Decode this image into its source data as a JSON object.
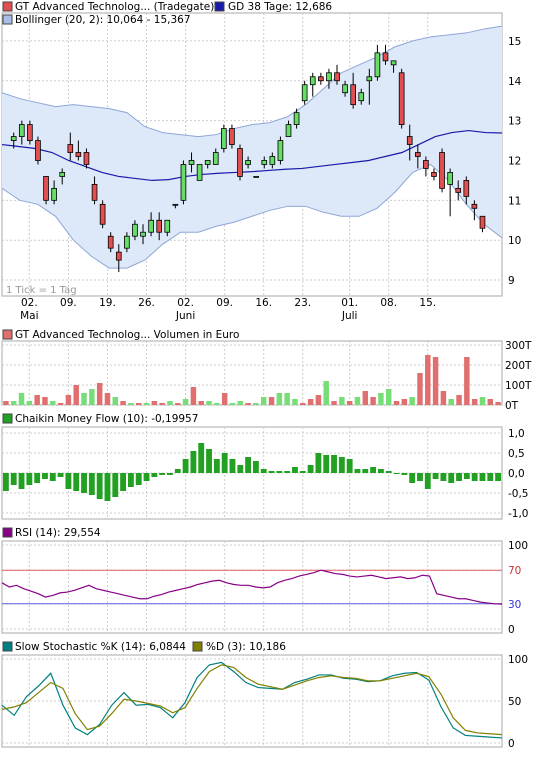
{
  "colors": {
    "candle_up": "#66dd66",
    "candle_down": "#e05050",
    "ma_line": "#1a1aaa",
    "bollinger_fill": "#dde8f8",
    "bollinger_line": "#8ea6d8",
    "volume_up": "#77dd77",
    "volume_down": "#e07070",
    "cmf_bar": "#22a022",
    "rsi_line": "#880088",
    "rsi_upper_line": "#e06060",
    "rsi_lower_line": "#6060e0",
    "stoch_k": "#008080",
    "stoch_d": "#808000",
    "grid": "#cccccc"
  },
  "legend": {
    "price_label": "GT Advanced Technolog... (Tradegate)",
    "ma_label": "GD 38 Tage: 12,686",
    "bollinger_label": "Bollinger (20, 2): 10,064 - 15,367",
    "volume_label": "GT Advanced Technolog... Volumen in Euro",
    "cmf_label": "Chaikin Money Flow (10): -0,19957",
    "rsi_label": "RSI (14): 29,554",
    "stoch_k_label": "Slow Stochastic %K (14): 6,0844",
    "stoch_d_label": "%D (3): 10,186",
    "tick_note": "1 Tick = 1 Tag"
  },
  "chart_data": [
    {
      "type": "candlestick",
      "panel": "price",
      "x_labels": [
        "02.",
        "09.",
        "19.",
        "26.",
        "02.",
        "09.",
        "16.",
        "23.",
        "01.",
        "08.",
        "15."
      ],
      "x_label_index": [
        3,
        8,
        13,
        18,
        23,
        28,
        33,
        38,
        44,
        49,
        54
      ],
      "month_labels": [
        {
          "label": "Mai",
          "index": 3
        },
        {
          "label": "Juni",
          "index": 23
        },
        {
          "label": "Juli",
          "index": 44
        }
      ],
      "y_ticks": [
        9,
        10,
        11,
        12,
        13,
        14,
        15
      ],
      "ylim": [
        8.6,
        15.7
      ],
      "ohlc": [
        [
          12.5,
          12.7,
          12.3,
          12.6
        ],
        [
          12.6,
          13.0,
          12.4,
          12.9
        ],
        [
          12.9,
          13.0,
          12.4,
          12.5
        ],
        [
          12.5,
          12.6,
          11.9,
          12.0
        ],
        [
          11.6,
          11.6,
          10.9,
          11.0
        ],
        [
          11.0,
          11.5,
          10.9,
          11.3
        ],
        [
          11.6,
          11.8,
          11.4,
          11.7
        ],
        [
          12.4,
          12.7,
          12.0,
          12.2
        ],
        [
          12.2,
          12.5,
          12.0,
          12.1
        ],
        [
          12.2,
          12.3,
          11.8,
          11.9
        ],
        [
          11.4,
          11.6,
          10.9,
          11.0
        ],
        [
          10.9,
          11.0,
          10.3,
          10.4
        ],
        [
          10.1,
          10.2,
          9.7,
          9.8
        ],
        [
          9.7,
          9.9,
          9.2,
          9.5
        ],
        [
          9.8,
          10.2,
          9.7,
          10.1
        ],
        [
          10.1,
          10.5,
          10.0,
          10.4
        ],
        [
          10.1,
          10.4,
          9.9,
          10.2
        ],
        [
          10.2,
          10.7,
          10.1,
          10.5
        ],
        [
          10.5,
          10.7,
          10.0,
          10.2
        ],
        [
          10.2,
          10.5,
          10.1,
          10.5
        ],
        [
          10.9,
          10.9,
          10.8,
          10.9
        ],
        [
          11.0,
          12.0,
          10.9,
          11.9
        ],
        [
          11.9,
          12.2,
          11.7,
          12.0
        ],
        [
          11.5,
          11.9,
          11.5,
          11.9
        ],
        [
          11.9,
          12.0,
          11.8,
          12.0
        ],
        [
          11.9,
          12.3,
          11.9,
          12.2
        ],
        [
          12.3,
          12.9,
          12.2,
          12.8
        ],
        [
          12.8,
          12.9,
          12.3,
          12.4
        ],
        [
          12.3,
          12.4,
          11.5,
          11.6
        ],
        [
          11.9,
          12.1,
          11.8,
          12.0
        ],
        [
          11.6,
          11.6,
          11.6,
          11.6
        ],
        [
          11.9,
          12.1,
          11.8,
          12.0
        ],
        [
          11.9,
          12.2,
          11.8,
          12.1
        ],
        [
          12.0,
          12.6,
          11.9,
          12.5
        ],
        [
          12.6,
          13.0,
          12.6,
          12.9
        ],
        [
          12.9,
          13.3,
          12.8,
          13.2
        ],
        [
          13.5,
          14.0,
          13.4,
          13.9
        ],
        [
          13.9,
          14.2,
          13.6,
          14.1
        ],
        [
          14.1,
          14.2,
          13.9,
          14.0
        ],
        [
          14.0,
          14.3,
          13.8,
          14.2
        ],
        [
          14.2,
          14.4,
          13.9,
          14.0
        ],
        [
          13.7,
          14.0,
          13.6,
          13.9
        ],
        [
          13.9,
          14.2,
          13.3,
          13.4
        ],
        [
          13.5,
          13.8,
          13.4,
          13.7
        ]
      ],
      "ma_values": [
        12.4,
        12.35,
        12.3,
        12.2,
        12.0,
        11.85,
        11.7,
        11.6,
        11.55,
        11.5,
        11.52,
        11.6,
        11.65,
        11.68,
        11.7,
        11.72,
        11.75,
        11.78,
        11.8,
        11.85,
        11.9,
        11.95,
        12.0,
        12.1,
        12.2,
        12.4,
        12.6,
        12.7,
        12.75,
        12.7,
        12.69
      ],
      "bollinger_upper": [
        13.7,
        13.55,
        13.45,
        13.35,
        13.4,
        13.35,
        13.3,
        13.2,
        12.85,
        12.7,
        12.65,
        12.6,
        12.65,
        12.8,
        12.9,
        12.95,
        13.1,
        13.4,
        13.8,
        14.2,
        14.4,
        14.6,
        14.85,
        15.0,
        15.1,
        15.15,
        15.2,
        15.3,
        15.37
      ],
      "bollinger_lower": [
        11.3,
        11.0,
        10.9,
        10.6,
        10.0,
        9.6,
        9.3,
        9.3,
        9.5,
        9.9,
        10.2,
        10.2,
        10.35,
        10.45,
        10.6,
        10.75,
        10.85,
        10.85,
        10.7,
        10.6,
        10.6,
        10.8,
        11.2,
        11.7,
        11.9,
        11.5,
        10.9,
        10.4,
        10.06
      ]
    },
    {
      "type": "bar",
      "panel": "volume",
      "y_ticks": [
        "0T",
        "100T",
        "200T",
        "300T"
      ],
      "ylim": [
        0,
        300
      ],
      "values": [
        20,
        20,
        60,
        20,
        50,
        40,
        20,
        10,
        50,
        100,
        60,
        80,
        110,
        60,
        40,
        20,
        10,
        10,
        10,
        20,
        10,
        20,
        10,
        30,
        90,
        20,
        20,
        10,
        60,
        10,
        20,
        10,
        10,
        40,
        40,
        60,
        60,
        30,
        10,
        30,
        50,
        120,
        20,
        40,
        20,
        40,
        70,
        40,
        60,
        80,
        20,
        30,
        40,
        160,
        250,
        240,
        70,
        30,
        50,
        240,
        30,
        40,
        30,
        15
      ],
      "up": [
        false,
        true,
        true,
        true,
        false,
        false,
        true,
        false,
        false,
        false,
        true,
        true,
        false,
        false,
        true,
        false,
        true,
        false,
        true,
        false,
        false,
        true,
        false,
        true,
        false,
        false,
        true,
        true,
        false,
        true,
        true,
        false,
        true,
        true,
        false,
        true,
        true,
        true,
        false,
        false,
        false,
        true,
        false,
        true,
        false,
        true,
        false,
        false,
        true,
        true,
        false,
        false,
        true,
        false,
        false,
        false,
        false,
        true,
        false,
        false,
        false,
        true,
        false,
        false
      ]
    },
    {
      "type": "bar",
      "panel": "chaikin-money-flow",
      "y_ticks": [
        "-1,0",
        "-0,5",
        "0,0",
        "0,5",
        "1,0"
      ],
      "ylim": [
        -1.0,
        1.0
      ],
      "values": [
        -0.45,
        -0.3,
        -0.4,
        -0.3,
        -0.25,
        -0.15,
        -0.2,
        -0.1,
        -0.4,
        -0.45,
        -0.5,
        -0.55,
        -0.65,
        -0.7,
        -0.6,
        -0.45,
        -0.35,
        -0.3,
        -0.2,
        -0.1,
        -0.05,
        -0.05,
        0.1,
        0.35,
        0.55,
        0.75,
        0.6,
        0.35,
        0.5,
        0.35,
        0.2,
        0.4,
        0.3,
        0.1,
        0.05,
        0.05,
        0.05,
        0.15,
        0.05,
        0.2,
        0.5,
        0.45,
        0.45,
        0.4,
        0.35,
        0.1,
        0.1,
        0.15,
        0.1,
        0.05,
        0.0,
        -0.05,
        -0.25,
        -0.2,
        -0.4,
        -0.15,
        -0.2,
        -0.25,
        -0.2,
        -0.15,
        -0.2,
        -0.2,
        -0.2,
        -0.2
      ]
    },
    {
      "type": "line",
      "panel": "rsi",
      "y_ticks": [
        0,
        30,
        70,
        100
      ],
      "ylim": [
        0,
        100
      ],
      "reference_lines": [
        70,
        30
      ],
      "values": [
        55,
        50,
        52,
        48,
        45,
        42,
        38,
        40,
        43,
        44,
        46,
        49,
        52,
        48,
        46,
        44,
        42,
        40,
        38,
        36,
        36,
        39,
        41,
        44,
        46,
        48,
        50,
        53,
        55,
        57,
        58,
        55,
        53,
        52,
        52,
        50,
        49,
        50,
        55,
        58,
        60,
        63,
        65,
        67,
        70,
        68,
        66,
        65,
        63,
        62,
        63,
        64,
        62,
        60,
        61,
        62,
        60,
        61,
        64,
        63,
        42,
        40,
        38,
        36,
        36,
        34,
        32,
        31,
        30,
        29.6
      ]
    },
    {
      "type": "line",
      "panel": "slow-stochastic",
      "y_ticks": [
        0,
        50,
        100
      ],
      "ylim": [
        0,
        100
      ],
      "series": [
        {
          "name": "Slow Stochastic %K (14)",
          "values": [
            45,
            33,
            55,
            68,
            83,
            45,
            18,
            10,
            22,
            45,
            60,
            45,
            46,
            42,
            30,
            48,
            78,
            93,
            96,
            85,
            72,
            66,
            65,
            64,
            72,
            76,
            81,
            81,
            77,
            76,
            73,
            74,
            80,
            83,
            84,
            75,
            43,
            18,
            9,
            8,
            7,
            6
          ]
        },
        {
          "name": "%D (3)",
          "values": [
            40,
            43,
            48,
            60,
            72,
            65,
            35,
            16,
            20,
            35,
            52,
            50,
            47,
            44,
            36,
            42,
            65,
            85,
            93,
            90,
            78,
            70,
            67,
            64,
            69,
            74,
            78,
            80,
            78,
            77,
            74,
            74,
            77,
            80,
            83,
            79,
            58,
            30,
            15,
            12,
            11,
            10
          ]
        }
      ]
    }
  ]
}
